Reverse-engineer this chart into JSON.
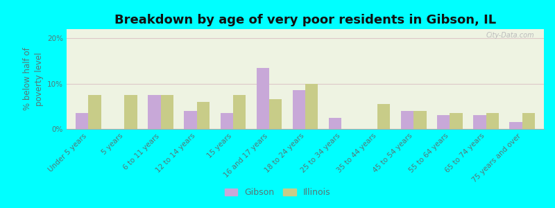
{
  "title": "Breakdown by age of very poor residents in Gibson, IL",
  "ylabel": "% below half of\npoverty level",
  "categories": [
    "Under 5 years",
    "5 years",
    "6 to 11 years",
    "12 to 14 years",
    "15 years",
    "16 and 17 years",
    "18 to 24 years",
    "25 to 34 years",
    "35 to 44 years",
    "45 to 54 years",
    "55 to 64 years",
    "65 to 74 years",
    "75 years and over"
  ],
  "gibson_values": [
    3.5,
    0.0,
    7.5,
    4.0,
    3.5,
    13.5,
    8.5,
    2.5,
    0.0,
    4.0,
    3.0,
    3.0,
    1.5
  ],
  "illinois_values": [
    7.5,
    7.5,
    7.5,
    6.0,
    7.5,
    6.5,
    10.0,
    0.0,
    5.5,
    4.0,
    3.5,
    3.5,
    3.5
  ],
  "gibson_color": "#c8a8d8",
  "illinois_color": "#c8cc88",
  "background_color": "#00ffff",
  "plot_bg_color": "#eef3e2",
  "ylim": [
    0,
    22
  ],
  "yticks": [
    0,
    10,
    20
  ],
  "ytick_labels": [
    "0%",
    "10%",
    "20%"
  ],
  "bar_width": 0.35,
  "title_fontsize": 13,
  "axis_label_fontsize": 8.5,
  "tick_fontsize": 7.5,
  "legend_fontsize": 9,
  "grid_color": "#ddc8c8",
  "label_color": "#557777",
  "watermark": "City-Data.com"
}
